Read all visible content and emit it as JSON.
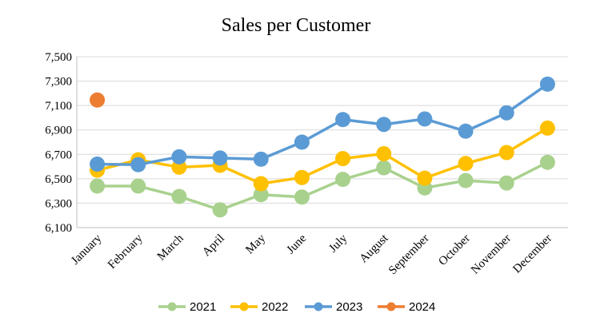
{
  "chart_data": {
    "type": "line",
    "title": "Sales per Customer",
    "xlabel": "",
    "ylabel": "",
    "categories": [
      "January",
      "February",
      "March",
      "April",
      "May",
      "June",
      "July",
      "August",
      "September",
      "October",
      "November",
      "December"
    ],
    "ylim": [
      6100,
      7500
    ],
    "yticks": [
      "6,100",
      "6,300",
      "6,500",
      "6,700",
      "6,900",
      "7,100",
      "7,300",
      "7,500"
    ],
    "grid": "horizontal",
    "legend_position": "bottom",
    "series": [
      {
        "name": "2021",
        "color": "#A9D18E",
        "values": [
          6440,
          6440,
          6355,
          6245,
          6370,
          6350,
          6495,
          6590,
          6425,
          6485,
          6465,
          6635
        ]
      },
      {
        "name": "2022",
        "color": "#FFC000",
        "values": [
          6570,
          6655,
          6595,
          6610,
          6460,
          6510,
          6665,
          6705,
          6505,
          6625,
          6715,
          6915
        ]
      },
      {
        "name": "2023",
        "color": "#5B9BD5",
        "values": [
          6620,
          6615,
          6680,
          6670,
          6660,
          6800,
          6985,
          6945,
          6990,
          6890,
          7040,
          7275
        ]
      },
      {
        "name": "2024",
        "color": "#ED7D31",
        "values": [
          7145,
          null,
          null,
          null,
          null,
          null,
          null,
          null,
          null,
          null,
          null,
          null
        ]
      }
    ]
  }
}
